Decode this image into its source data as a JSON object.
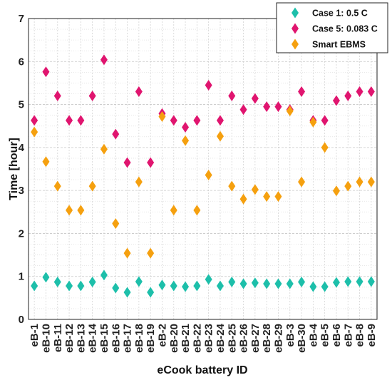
{
  "chart_data": {
    "type": "scatter",
    "xlabel": "eCook battery ID",
    "ylabel": "Time [hour]",
    "ylim": [
      0,
      7
    ],
    "yticks": [
      0,
      1,
      2,
      3,
      4,
      5,
      6,
      7
    ],
    "grid": true,
    "legend_position": "top-right",
    "categories": [
      "eB-1",
      "eB-10",
      "eB-11",
      "eB-12",
      "eB-13",
      "eB-14",
      "eB-15",
      "eB-16",
      "eB-17",
      "eB-18",
      "eB-19",
      "eB-2",
      "eB-20",
      "eB-21",
      "eB-22",
      "eB-23",
      "eB-24",
      "eB-25",
      "eB-26",
      "eB-27",
      "eB-28",
      "eB-29",
      "eB-3",
      "eB-30",
      "eB-4",
      "eB-5",
      "eB-6",
      "eB-7",
      "eB-8",
      "eB-9"
    ],
    "series": [
      {
        "name": "Case 1: 0.5 C",
        "color": "#1dbfaa",
        "values": [
          0.78,
          0.98,
          0.87,
          0.78,
          0.78,
          0.87,
          1.03,
          0.73,
          0.63,
          0.88,
          0.63,
          0.8,
          0.78,
          0.76,
          0.78,
          0.93,
          0.78,
          0.87,
          0.83,
          0.85,
          0.83,
          0.83,
          0.83,
          0.87,
          0.76,
          0.76,
          0.86,
          0.88,
          0.88,
          0.88
        ]
      },
      {
        "name": "Case 5: 0.083 C",
        "color": "#e0156f",
        "values": [
          4.63,
          5.76,
          5.2,
          4.63,
          4.63,
          5.2,
          6.04,
          4.31,
          3.65,
          5.3,
          3.65,
          4.79,
          4.63,
          4.47,
          4.63,
          5.45,
          4.63,
          5.2,
          4.88,
          5.14,
          4.95,
          4.95,
          4.88,
          5.3,
          4.63,
          4.63,
          5.09,
          5.2,
          5.3,
          5.3
        ]
      },
      {
        "name": "Smart EBMS",
        "color": "#f5a00f",
        "values": [
          4.36,
          3.67,
          3.1,
          2.54,
          2.54,
          3.1,
          3.96,
          2.23,
          1.54,
          3.2,
          1.54,
          4.72,
          2.54,
          4.16,
          2.54,
          3.36,
          4.26,
          3.1,
          2.8,
          3.02,
          2.86,
          2.86,
          4.85,
          3.2,
          4.59,
          4.0,
          2.99,
          3.1,
          3.2,
          3.2
        ]
      }
    ]
  }
}
